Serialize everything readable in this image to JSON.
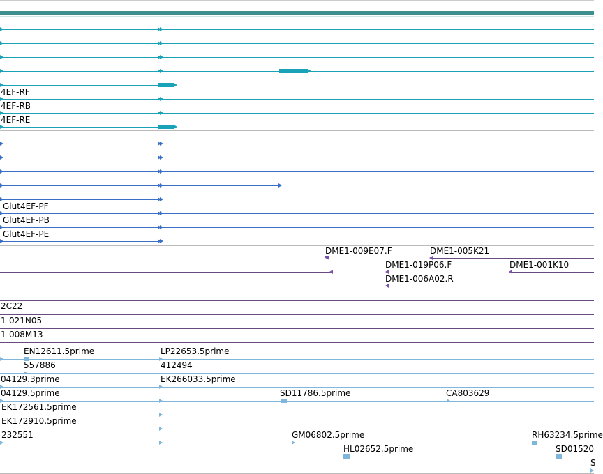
{
  "colors": {
    "header_band": "#3f8f8f",
    "transcript": "#1aa3b8",
    "protein": "#3a6fc8",
    "clone_end": "#7a52a8",
    "clone_line": "#6b4a82",
    "est": "#7eb6dc",
    "separator": "#bbbbbb"
  },
  "transcript_track": {
    "labels": [
      "4EF-RF",
      "4EF-RB",
      "4EF-RE"
    ]
  },
  "protein_track": {
    "labels": [
      "Glut4EF-PF",
      "Glut4EF-PB",
      "Glut4EF-PE"
    ]
  },
  "clone_ends_track": {
    "labels": [
      "DME1-009E07.F",
      "DME1-005K21",
      "DME1-019P06.F",
      "DME1-001K10",
      "DME1-006A02.R"
    ]
  },
  "clones_track": {
    "labels": [
      "2C22",
      "1-021N05",
      "1-008M13"
    ]
  },
  "est_track": {
    "labels": [
      "EN12611.5prime",
      "LP22653.5prime",
      "557886",
      "412494",
      "04129.3prime",
      "EK266033.5prime",
      "04129.5prime",
      "SD11786.5prime",
      "CA803629",
      "EK172561.5prime",
      "EK172910.5prime",
      "232551",
      "GM06802.5prime",
      "RH63234.5prime",
      "HL02652.5prime",
      "SD01520",
      "S"
    ]
  }
}
